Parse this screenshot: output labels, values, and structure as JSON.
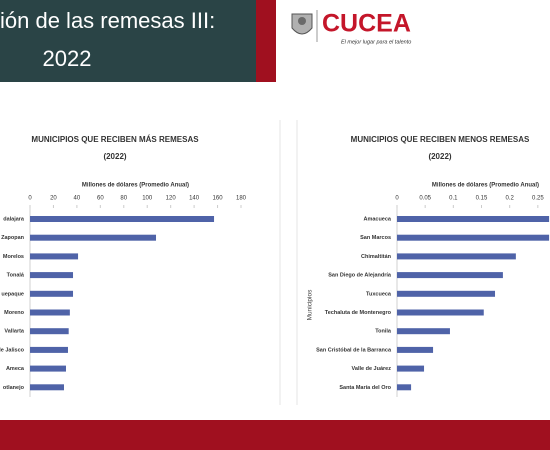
{
  "header": {
    "title_line1": "ión de las remesas III:",
    "title_line2": "2022"
  },
  "logo": {
    "name": "CUCEA",
    "tagline": "El mejor lugar para el talento"
  },
  "chart_data": [
    {
      "type": "bar",
      "orientation": "horizontal",
      "title": "MUNICIPIOS QUE RECIBEN MÁS REMESAS",
      "subtitle": "(2022)",
      "x_label": "Millones de dólares (Promedio Anual)",
      "categories": [
        "dalajara",
        "Zapopan",
        "Morelos",
        "Tonalá",
        "uepaque",
        "Moreno",
        "Vallarta",
        "de Jalisco",
        "Ameca",
        "otlanejo"
      ],
      "values": [
        157,
        107.5,
        41,
        36.7,
        36.7,
        34,
        33,
        32.4,
        30.7,
        29
      ],
      "color": "#4f63a8",
      "xlim": [
        0,
        180
      ],
      "xticks": [
        0,
        20,
        40,
        60,
        80,
        100,
        120,
        140,
        160,
        180
      ]
    },
    {
      "type": "bar",
      "orientation": "horizontal",
      "title": "MUNICIPIOS QUE RECIBEN MENOS REMESAS",
      "subtitle": "(2022)",
      "x_label": "Millones de dólares (Promedio Anual)",
      "y_label": "Municipios",
      "categories": [
        "Amacueca",
        "San Marcos",
        "Chimaltitán",
        "San Diego de Alejandría",
        "Tuxcueca",
        "Techaluta de Montenegro",
        "Tonila",
        "San Cristóbal de la Barranca",
        "Valle de Juárez",
        "Santa María del Oro"
      ],
      "values": [
        0.27,
        0.27,
        0.211,
        0.188,
        0.174,
        0.154,
        0.094,
        0.064,
        0.048,
        0.025
      ],
      "color": "#4f63a8",
      "xlim": [
        0,
        0.3
      ],
      "xticks": [
        0,
        0.05,
        0.1,
        0.15,
        0.2,
        0.25
      ]
    }
  ]
}
